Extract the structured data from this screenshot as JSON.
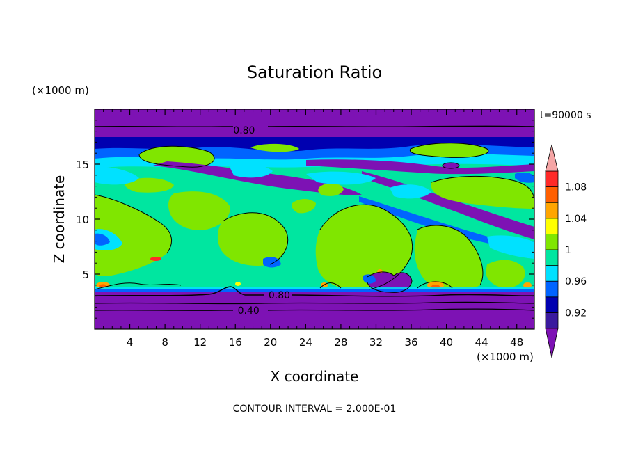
{
  "chart_data": {
    "type": "heatmap",
    "title": "Saturation Ratio",
    "xlabel": "X coordinate",
    "ylabel": "Z coordinate",
    "x_unit_label": "(×1000 m)",
    "y_unit_label": "(×1000 m)",
    "time_label": "t=90000 s",
    "footer": "CONTOUR INTERVAL = 2.000E-01",
    "xlim": [
      0,
      50
    ],
    "ylim": [
      0,
      20
    ],
    "x_ticks": [
      4,
      8,
      12,
      16,
      20,
      24,
      28,
      32,
      36,
      40,
      44,
      48
    ],
    "y_ticks": [
      5,
      10,
      15
    ],
    "grid": false,
    "contour_labels": [
      {
        "text": "0.80",
        "x": 17,
        "y": 18.1
      },
      {
        "text": "0.80",
        "x": 21,
        "y": 3.1
      },
      {
        "text": "0.40",
        "x": 17.5,
        "y": 1.7
      }
    ],
    "colorbar": {
      "labels": [
        "1.08",
        "1.04",
        "1",
        "0.96",
        "0.92"
      ],
      "levels": [
        0.9,
        0.92,
        0.94,
        0.96,
        0.98,
        1.0,
        1.02,
        1.04,
        1.06,
        1.08,
        1.1
      ],
      "colors": [
        "#3a1a9e",
        "#0000b0",
        "#0064ff",
        "#00e1ff",
        "#00e6a0",
        "#80e600",
        "#ffff00",
        "#ffa500",
        "#ff5f00",
        "#ff2a28"
      ],
      "under_color": "#7d12b4",
      "over_color": "#f5a5a5"
    }
  }
}
